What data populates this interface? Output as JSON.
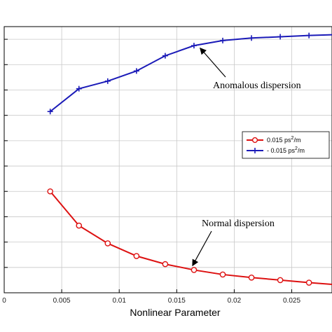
{
  "colors": {
    "normal": "#dd1111",
    "anomalous": "#1a1ab8",
    "grid": "#c8c8c8",
    "axis": "#000000"
  },
  "chart_data": {
    "type": "line",
    "xlabel": "Nonlinear Parameter",
    "ylabel": "",
    "xlim": [
      0,
      0.0285
    ],
    "ylim": [
      0,
      10.5
    ],
    "grid": true,
    "legend_position": "right-middle",
    "xticks": [
      0,
      0.005,
      0.01,
      0.015,
      0.02,
      0.025
    ],
    "xtick_labels": [
      "0",
      "0.005",
      "0.01",
      "0.015",
      "0.02",
      "0.025"
    ],
    "yticks": [
      1,
      2,
      3,
      4,
      5,
      6,
      7,
      8,
      9,
      10
    ],
    "series": [
      {
        "name": "0.015 ps²/m",
        "legend_base": "0.015 ps",
        "legend_sup": "2",
        "legend_tail": "/m",
        "color": "#dd1111",
        "marker": "circle",
        "x": [
          0.004,
          0.0065,
          0.009,
          0.0115,
          0.014,
          0.0165,
          0.019,
          0.0215,
          0.024,
          0.0265,
          0.0285
        ],
        "y": [
          4.0,
          2.65,
          1.95,
          1.45,
          1.13,
          0.9,
          0.72,
          0.6,
          0.5,
          0.4,
          0.33
        ]
      },
      {
        "name": "- 0.015 ps²/m",
        "legend_base": "- 0.015 ps",
        "legend_sup": "2",
        "legend_tail": "/m",
        "color": "#1a1ab8",
        "marker": "plus",
        "x": [
          0.004,
          0.0065,
          0.009,
          0.0115,
          0.014,
          0.0165,
          0.019,
          0.0215,
          0.024,
          0.0265,
          0.0285
        ],
        "y": [
          7.15,
          8.05,
          8.35,
          8.75,
          9.35,
          9.75,
          9.95,
          10.05,
          10.1,
          10.15,
          10.18
        ]
      }
    ],
    "annotations": [
      {
        "text": "Anomalous dispersion",
        "target_series": 1,
        "target_x": 0.0168
      },
      {
        "text": "Normal dispersion",
        "target_series": 0,
        "target_x": 0.0162
      }
    ]
  }
}
